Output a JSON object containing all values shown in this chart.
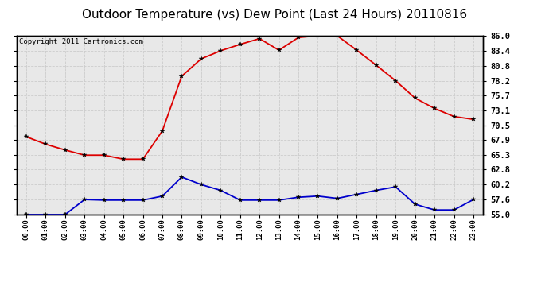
{
  "title": "Outdoor Temperature (vs) Dew Point (Last 24 Hours) 20110816",
  "copyright": "Copyright 2011 Cartronics.com",
  "x_labels": [
    "00:00",
    "01:00",
    "02:00",
    "03:00",
    "04:00",
    "05:00",
    "06:00",
    "07:00",
    "08:00",
    "09:00",
    "10:00",
    "11:00",
    "12:00",
    "13:00",
    "14:00",
    "15:00",
    "16:00",
    "17:00",
    "18:00",
    "19:00",
    "20:00",
    "21:00",
    "22:00",
    "23:00"
  ],
  "temp_data": [
    68.5,
    67.2,
    66.2,
    65.3,
    65.3,
    64.6,
    64.6,
    69.5,
    79.0,
    82.0,
    83.4,
    84.5,
    85.5,
    83.5,
    85.7,
    86.0,
    86.0,
    83.5,
    80.9,
    78.2,
    75.2,
    73.4,
    72.0,
    71.5
  ],
  "dew_data": [
    55.0,
    55.0,
    55.0,
    57.6,
    57.5,
    57.5,
    57.5,
    58.2,
    61.5,
    60.2,
    59.2,
    57.5,
    57.5,
    57.5,
    58.0,
    58.2,
    57.8,
    58.5,
    59.2,
    59.8,
    56.8,
    55.8,
    55.8,
    57.6
  ],
  "ylim": [
    55.0,
    86.0
  ],
  "yticks": [
    55.0,
    57.6,
    60.2,
    62.8,
    65.3,
    67.9,
    70.5,
    73.1,
    75.7,
    78.2,
    80.8,
    83.4,
    86.0
  ],
  "temp_color": "#dd0000",
  "dew_color": "#0000cc",
  "bg_color": "#ffffff",
  "plot_bg": "#e8e8e8",
  "grid_color": "#cccccc",
  "title_fontsize": 11,
  "copyright_fontsize": 6.5,
  "marker_size": 4
}
